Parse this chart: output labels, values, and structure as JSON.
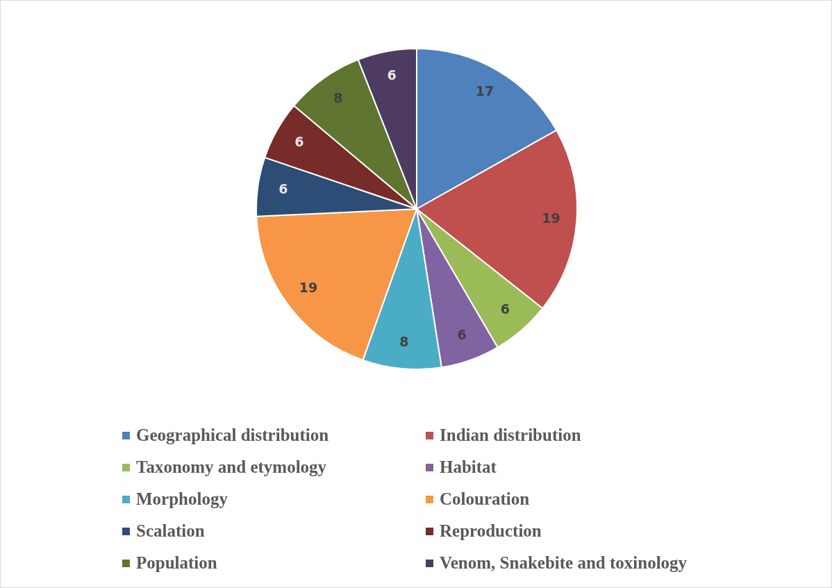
{
  "chart_data": {
    "type": "pie",
    "categories": [
      "Geographical distribution",
      "Indian distribution",
      "Taxonomy and etymology",
      "Habitat",
      "Morphology",
      "Colouration",
      "Scalation",
      "Reproduction",
      "Population",
      "Venom, Snakebite and toxinology"
    ],
    "values": [
      17,
      19,
      6,
      6,
      8,
      19,
      6,
      6,
      8,
      6
    ],
    "colors": [
      "#4f81bd",
      "#c0504d",
      "#9bbb59",
      "#8064a2",
      "#4bacc6",
      "#f79646",
      "#2c4d75",
      "#772c2a",
      "#5f7530",
      "#4d3b62"
    ],
    "data_labels": true,
    "legend": "bottom"
  }
}
